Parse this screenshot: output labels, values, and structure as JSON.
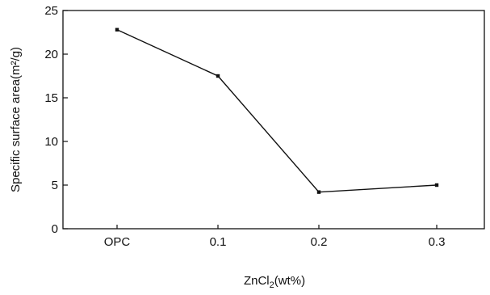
{
  "chart_data": {
    "type": "line",
    "categories": [
      "OPC",
      "0.1",
      "0.2",
      "0.3"
    ],
    "series": [
      {
        "values": [
          22.8,
          17.5,
          4.2,
          5.0
        ]
      }
    ],
    "xlabel_main": "ZnCl",
    "xlabel_sub": "2",
    "xlabel_rest": "(wt%)",
    "ylabel": "Specific surface area(m²/g)",
    "ylim": [
      0,
      25
    ],
    "yticks": [
      "0",
      "5",
      "10",
      "15",
      "20",
      "25"
    ],
    "grid": false,
    "legend": "none"
  }
}
